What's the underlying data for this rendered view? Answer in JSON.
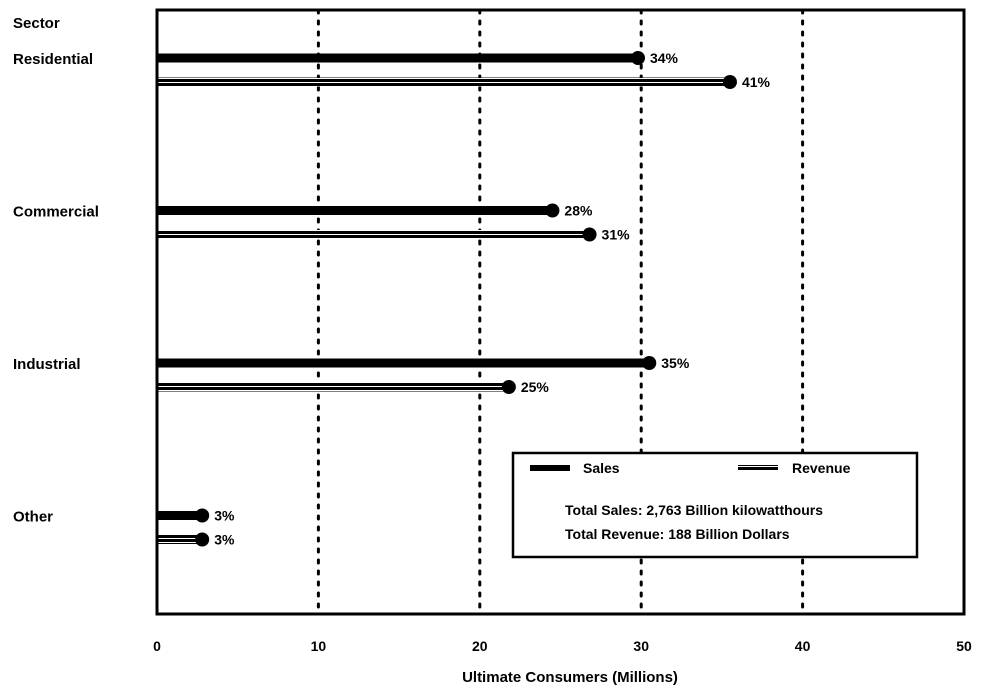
{
  "chart_data": {
    "type": "bar",
    "orientation": "horizontal",
    "style": "lollipop",
    "categories_title": "Sector",
    "categories": [
      "Residential",
      "Commercial",
      "Industrial",
      "Other"
    ],
    "series": [
      {
        "name": "Sales",
        "values": [
          29.8,
          24.5,
          30.5,
          2.8
        ],
        "labels": [
          "34%",
          "28%",
          "35%",
          "3%"
        ]
      },
      {
        "name": "Revenue",
        "values": [
          35.5,
          26.8,
          21.8,
          2.8
        ],
        "labels": [
          "41%",
          "31%",
          "25%",
          "3%"
        ]
      }
    ],
    "xlabel": "Ultimate Consumers (Millions)",
    "xlim": [
      0,
      50
    ],
    "xticks": [
      "0",
      "10",
      "20",
      "30",
      "40",
      "50"
    ],
    "grid": "vertical dotted",
    "legend_position": "lower-right",
    "legend_notes": [
      "Total Sales: 2,763 Billion kilowatthours",
      "Total Revenue: 188 Billion Dollars"
    ],
    "colors": {
      "sales": "#000000",
      "revenue": "#000000"
    }
  }
}
